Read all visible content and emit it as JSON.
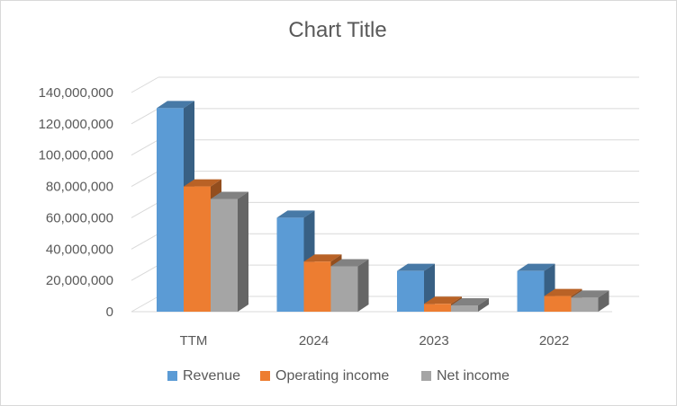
{
  "chart_data": {
    "type": "bar",
    "title": "Chart Title",
    "categories": [
      "TTM",
      "2024",
      "2023",
      "2022"
    ],
    "series": [
      {
        "name": "Revenue",
        "values": [
          130000000,
          60000000,
          26000000,
          26000000
        ],
        "color": "#5b9bd5"
      },
      {
        "name": "Operating income",
        "values": [
          80000000,
          32000000,
          5000000,
          10000000
        ],
        "color": "#ed7d31"
      },
      {
        "name": "Net income",
        "values": [
          72000000,
          29000000,
          4000000,
          9000000
        ],
        "color": "#a5a5a5"
      }
    ],
    "yticks": [
      "0",
      "20,000,000",
      "40,000,000",
      "60,000,000",
      "80,000,000",
      "100,000,000",
      "120,000,000",
      "140,000,000"
    ],
    "ylim": [
      0,
      140000000
    ],
    "grid": true,
    "legend": "bottom",
    "style": "3d-clustered-column"
  }
}
